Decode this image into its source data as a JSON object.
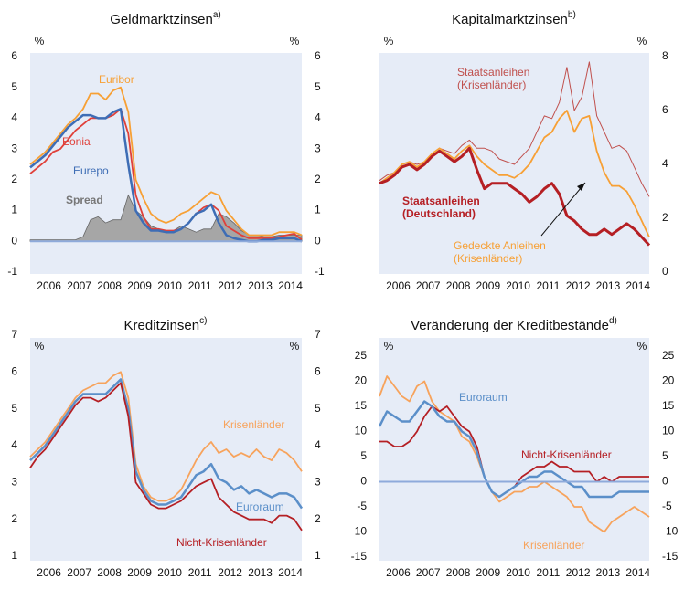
{
  "chart_data": [
    {
      "type": "line",
      "title": "Geldmarktzinsen",
      "title_note": "a)",
      "y_unit": "%",
      "x": [
        2005.875,
        2006.125,
        2006.375,
        2006.625,
        2006.875,
        2007.125,
        2007.375,
        2007.625,
        2007.875,
        2008.125,
        2008.375,
        2008.625,
        2008.875,
        2009.125,
        2009.375,
        2009.625,
        2009.875,
        2010.125,
        2010.375,
        2010.625,
        2010.875,
        2011.125,
        2011.375,
        2011.625,
        2011.875,
        2012.125,
        2012.375,
        2012.625,
        2012.875,
        2013.125,
        2013.375,
        2013.625,
        2013.875,
        2014.125,
        2014.375,
        2014.625,
        2014.875
      ],
      "xlim": [
        2005.875,
        2014.875
      ],
      "xticks": [
        {
          "value": 2006.5,
          "label": "2006"
        },
        {
          "value": 2007.5,
          "label": "2007"
        },
        {
          "value": 2008.5,
          "label": "2008"
        },
        {
          "value": 2009.5,
          "label": "2009"
        },
        {
          "value": 2010.5,
          "label": "2010"
        },
        {
          "value": 2011.5,
          "label": "2011"
        },
        {
          "value": 2012.5,
          "label": "2012"
        },
        {
          "value": 2013.5,
          "label": "2013"
        },
        {
          "value": 2014.5,
          "label": "2014"
        }
      ],
      "ylim": [
        -1,
        6
      ],
      "yticks": [
        -1,
        0,
        1,
        2,
        3,
        4,
        5,
        6
      ],
      "yaxis_sides": [
        "left",
        "right"
      ],
      "zero_line": true,
      "series": [
        {
          "name": "Spread",
          "style": "area",
          "color": "#a6a6a6",
          "values": [
            0.05,
            0.05,
            0.05,
            0.05,
            0.05,
            0.05,
            0.05,
            0.15,
            0.7,
            0.8,
            0.6,
            0.7,
            0.7,
            1.5,
            1.0,
            0.8,
            0.5,
            0.4,
            0.3,
            0.35,
            0.5,
            0.4,
            0.3,
            0.4,
            0.4,
            0.9,
            0.8,
            0.6,
            0.35,
            0.2,
            0.2,
            0.15,
            0.15,
            0.2,
            0.2,
            0.2,
            0.2
          ]
        },
        {
          "name": "Euribor",
          "color": "#f7a035",
          "values": [
            2.5,
            2.7,
            2.9,
            3.2,
            3.5,
            3.8,
            4.0,
            4.3,
            4.8,
            4.8,
            4.6,
            4.9,
            5.0,
            4.2,
            2.0,
            1.4,
            0.9,
            0.7,
            0.6,
            0.7,
            0.9,
            1.0,
            1.2,
            1.4,
            1.6,
            1.5,
            1.0,
            0.7,
            0.4,
            0.2,
            0.2,
            0.2,
            0.2,
            0.3,
            0.3,
            0.3,
            0.2
          ]
        },
        {
          "name": "Eonia",
          "color": "#e0403a",
          "values": [
            2.2,
            2.4,
            2.6,
            2.9,
            3.0,
            3.3,
            3.6,
            3.8,
            4.0,
            4.0,
            4.0,
            4.1,
            4.3,
            3.5,
            1.5,
            0.8,
            0.4,
            0.4,
            0.35,
            0.35,
            0.4,
            0.6,
            0.9,
            1.1,
            1.2,
            1.0,
            0.5,
            0.35,
            0.2,
            0.1,
            0.1,
            0.1,
            0.1,
            0.15,
            0.2,
            0.25,
            0.05
          ]
        },
        {
          "name": "Eurepo",
          "color": "#3e6db5",
          "width": 2.5,
          "values": [
            2.4,
            2.6,
            2.8,
            3.1,
            3.4,
            3.7,
            3.9,
            4.1,
            4.1,
            4.0,
            4.0,
            4.2,
            4.3,
            2.5,
            1.0,
            0.6,
            0.35,
            0.35,
            0.3,
            0.3,
            0.4,
            0.6,
            0.9,
            1.0,
            1.2,
            0.6,
            0.2,
            0.1,
            0.05,
            0,
            0,
            0.05,
            0.05,
            0.1,
            0.1,
            0.1,
            0
          ]
        }
      ]
    },
    {
      "type": "line",
      "title": "Kapitalmarktzinsen",
      "title_note": "b)",
      "y_unit": "%",
      "x": [
        2005.875,
        2006.125,
        2006.375,
        2006.625,
        2006.875,
        2007.125,
        2007.375,
        2007.625,
        2007.875,
        2008.125,
        2008.375,
        2008.625,
        2008.875,
        2009.125,
        2009.375,
        2009.625,
        2009.875,
        2010.125,
        2010.375,
        2010.625,
        2010.875,
        2011.125,
        2011.375,
        2011.625,
        2011.875,
        2012.125,
        2012.375,
        2012.625,
        2012.875,
        2013.125,
        2013.375,
        2013.625,
        2013.875,
        2014.125,
        2014.375,
        2014.625,
        2014.875
      ],
      "xlim": [
        2005.875,
        2014.875
      ],
      "xticks": [
        {
          "value": 2006.5,
          "label": "2006"
        },
        {
          "value": 2007.5,
          "label": "2007"
        },
        {
          "value": 2008.5,
          "label": "2008"
        },
        {
          "value": 2009.5,
          "label": "2009"
        },
        {
          "value": 2010.5,
          "label": "2010"
        },
        {
          "value": 2011.5,
          "label": "2011"
        },
        {
          "value": 2012.5,
          "label": "2012"
        },
        {
          "value": 2013.5,
          "label": "2013"
        },
        {
          "value": 2014.5,
          "label": "2014"
        }
      ],
      "ylim": [
        0,
        8
      ],
      "yticks": [
        0,
        2,
        4,
        6,
        8
      ],
      "yaxis_sides": [
        "right"
      ],
      "zero_line": false,
      "series": [
        {
          "name": "Staatsanleihen (Krisenländer)",
          "color": "#c0504d",
          "width": 1,
          "values": [
            3.4,
            3.6,
            3.7,
            4.0,
            4.1,
            4.0,
            4.1,
            4.4,
            4.6,
            4.5,
            4.4,
            4.7,
            4.9,
            4.6,
            4.6,
            4.5,
            4.2,
            4.1,
            4.0,
            4.3,
            4.6,
            5.2,
            5.8,
            5.7,
            6.3,
            7.6,
            6.0,
            6.5,
            7.8,
            5.8,
            5.2,
            4.6,
            4.7,
            4.5,
            3.9,
            3.3,
            2.8
          ]
        },
        {
          "name": "Gedeckte Anleihen (Krisenländer)",
          "color": "#f7a035",
          "values": [
            3.3,
            3.5,
            3.7,
            4.0,
            4.1,
            3.9,
            4.1,
            4.4,
            4.6,
            4.4,
            4.2,
            4.5,
            4.7,
            4.3,
            4.0,
            3.8,
            3.6,
            3.6,
            3.5,
            3.7,
            4.0,
            4.5,
            5.0,
            5.2,
            5.7,
            6.0,
            5.2,
            5.7,
            5.8,
            4.5,
            3.7,
            3.2,
            3.2,
            3.0,
            2.5,
            1.9,
            1.3
          ]
        },
        {
          "name": "Staatsanleihen (Deutschland)",
          "color": "#b51f24",
          "width": 3,
          "bold": true,
          "values": [
            3.3,
            3.4,
            3.6,
            3.9,
            4.0,
            3.8,
            4.0,
            4.3,
            4.5,
            4.3,
            4.1,
            4.3,
            4.6,
            3.8,
            3.1,
            3.3,
            3.3,
            3.3,
            3.1,
            2.9,
            2.6,
            2.8,
            3.1,
            3.3,
            2.9,
            2.1,
            1.9,
            1.6,
            1.4,
            1.4,
            1.6,
            1.4,
            1.6,
            1.8,
            1.6,
            1.3,
            1.0
          ]
        }
      ]
    },
    {
      "type": "line",
      "title": "Kreditzinsen",
      "title_note": "c)",
      "y_unit": "%",
      "x": [
        2005.875,
        2006.125,
        2006.375,
        2006.625,
        2006.875,
        2007.125,
        2007.375,
        2007.625,
        2007.875,
        2008.125,
        2008.375,
        2008.625,
        2008.875,
        2009.125,
        2009.375,
        2009.625,
        2009.875,
        2010.125,
        2010.375,
        2010.625,
        2010.875,
        2011.125,
        2011.375,
        2011.625,
        2011.875,
        2012.125,
        2012.375,
        2012.625,
        2012.875,
        2013.125,
        2013.375,
        2013.625,
        2013.875,
        2014.125,
        2014.375,
        2014.625,
        2014.875
      ],
      "xlim": [
        2005.875,
        2014.875
      ],
      "xticks": [
        {
          "value": 2006.5,
          "label": "2006"
        },
        {
          "value": 2007.5,
          "label": "2007"
        },
        {
          "value": 2008.5,
          "label": "2008"
        },
        {
          "value": 2009.5,
          "label": "2009"
        },
        {
          "value": 2010.5,
          "label": "2010"
        },
        {
          "value": 2011.5,
          "label": "2011"
        },
        {
          "value": 2012.5,
          "label": "2012"
        },
        {
          "value": 2013.5,
          "label": "2013"
        },
        {
          "value": 2014.5,
          "label": "2014"
        }
      ],
      "ylim": [
        1,
        7
      ],
      "yticks": [
        1,
        2,
        3,
        4,
        5,
        6,
        7
      ],
      "yaxis_sides": [
        "left",
        "right"
      ],
      "zero_line": false,
      "series": [
        {
          "name": "Krisenländer",
          "color": "#f7a35c",
          "values": [
            3.7,
            3.9,
            4.1,
            4.4,
            4.7,
            5.0,
            5.3,
            5.5,
            5.6,
            5.7,
            5.7,
            5.9,
            6.0,
            5.3,
            3.5,
            2.9,
            2.6,
            2.5,
            2.5,
            2.6,
            2.8,
            3.2,
            3.6,
            3.9,
            4.1,
            3.8,
            3.9,
            3.7,
            3.8,
            3.7,
            3.9,
            3.7,
            3.6,
            3.9,
            3.8,
            3.6,
            3.3
          ]
        },
        {
          "name": "Euroraum",
          "color": "#5b8fc9",
          "width": 2.5,
          "values": [
            3.6,
            3.8,
            4.0,
            4.3,
            4.6,
            4.9,
            5.2,
            5.4,
            5.4,
            5.4,
            5.4,
            5.6,
            5.8,
            5.0,
            3.3,
            2.8,
            2.5,
            2.4,
            2.4,
            2.5,
            2.6,
            2.9,
            3.2,
            3.3,
            3.5,
            3.1,
            3.0,
            2.8,
            2.9,
            2.7,
            2.8,
            2.7,
            2.6,
            2.7,
            2.7,
            2.6,
            2.3
          ]
        },
        {
          "name": "Nicht-Krisenländer",
          "color": "#b51f24",
          "values": [
            3.4,
            3.7,
            3.9,
            4.2,
            4.5,
            4.8,
            5.1,
            5.3,
            5.3,
            5.2,
            5.3,
            5.5,
            5.7,
            4.8,
            3.0,
            2.7,
            2.4,
            2.3,
            2.3,
            2.4,
            2.5,
            2.7,
            2.9,
            3.0,
            3.1,
            2.6,
            2.4,
            2.2,
            2.1,
            2.0,
            2.0,
            2.0,
            1.9,
            2.1,
            2.1,
            2.0,
            1.7
          ]
        }
      ]
    },
    {
      "type": "line",
      "title": "Veränderung der Kreditbestände",
      "title_note": "d)",
      "y_unit": "%",
      "x": [
        2005.875,
        2006.125,
        2006.375,
        2006.625,
        2006.875,
        2007.125,
        2007.375,
        2007.625,
        2007.875,
        2008.125,
        2008.375,
        2008.625,
        2008.875,
        2009.125,
        2009.375,
        2009.625,
        2009.875,
        2010.125,
        2010.375,
        2010.625,
        2010.875,
        2011.125,
        2011.375,
        2011.625,
        2011.875,
        2012.125,
        2012.375,
        2012.625,
        2012.875,
        2013.125,
        2013.375,
        2013.625,
        2013.875,
        2014.125,
        2014.375,
        2014.625,
        2014.875
      ],
      "xlim": [
        2005.875,
        2014.875
      ],
      "xticks": [
        {
          "value": 2006.5,
          "label": "2006"
        },
        {
          "value": 2007.5,
          "label": "2007"
        },
        {
          "value": 2008.5,
          "label": "2008"
        },
        {
          "value": 2009.5,
          "label": "2009"
        },
        {
          "value": 2010.5,
          "label": "2010"
        },
        {
          "value": 2011.5,
          "label": "2011"
        },
        {
          "value": 2012.5,
          "label": "2012"
        },
        {
          "value": 2013.5,
          "label": "2013"
        },
        {
          "value": 2014.5,
          "label": "2014"
        }
      ],
      "ylim": [
        -15,
        25
      ],
      "yticks": [
        -15,
        -10,
        -5,
        0,
        5,
        10,
        15,
        20,
        25
      ],
      "yaxis_sides": [
        "left",
        "right"
      ],
      "zero_line": true,
      "series": [
        {
          "name": "Krisenländer",
          "color": "#f7a35c",
          "values": [
            17,
            21,
            19,
            17,
            16,
            19,
            20,
            16,
            14,
            13,
            12,
            9,
            8,
            5,
            1,
            -2,
            -4,
            -3,
            -2,
            -2,
            -1,
            -1,
            0,
            -1,
            -2,
            -3,
            -5,
            -5,
            -8,
            -9,
            -10,
            -8,
            -7,
            -6,
            -5,
            -6,
            -7
          ]
        },
        {
          "name": "Nicht-Krisenländer",
          "color": "#b51f24",
          "values": [
            8,
            8,
            7,
            7,
            8,
            10,
            13,
            15,
            14,
            15,
            13,
            11,
            10,
            7,
            1,
            -2,
            -3,
            -2,
            -1,
            1,
            2,
            3,
            3,
            4,
            3,
            3,
            2,
            2,
            2,
            0,
            1,
            0,
            1,
            1,
            1,
            1,
            1
          ]
        },
        {
          "name": "Euroraum",
          "color": "#5b8fc9",
          "width": 2.5,
          "values": [
            11,
            14,
            13,
            12,
            12,
            14,
            16,
            15,
            13,
            12,
            12,
            10,
            9,
            6,
            1,
            -2,
            -3,
            -2,
            -1,
            0,
            1,
            1,
            2,
            2,
            1,
            0,
            -1,
            -1,
            -3,
            -3,
            -3,
            -3,
            -2,
            -2,
            -2,
            -2,
            -2
          ]
        }
      ]
    }
  ]
}
